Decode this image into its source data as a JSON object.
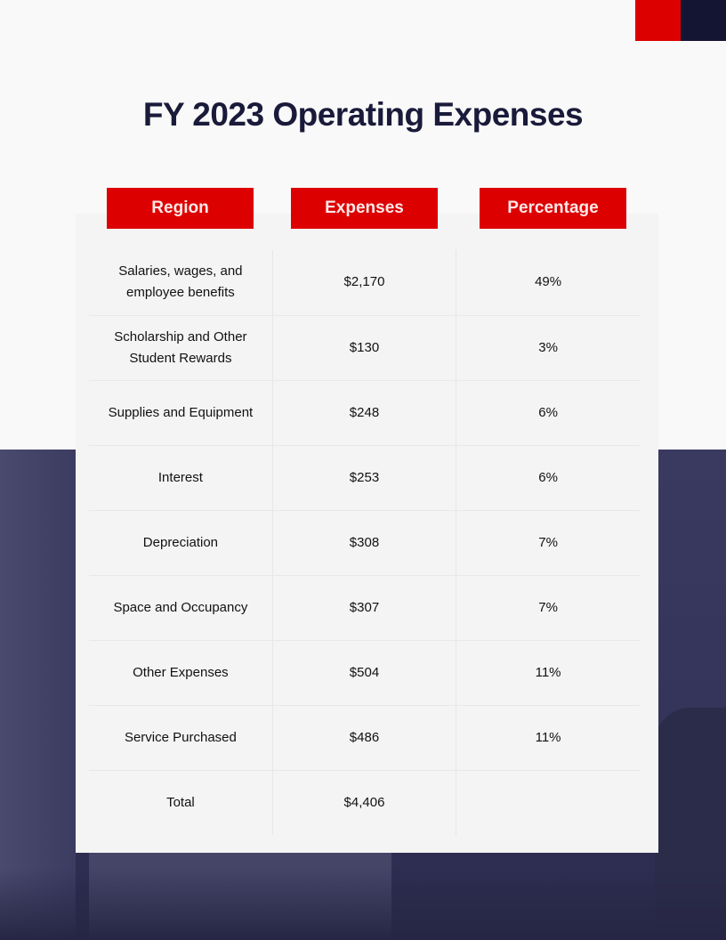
{
  "title": "FY 2023 Operating Expenses",
  "headers": [
    "Region",
    "Expenses",
    "Percentage"
  ],
  "rows": [
    {
      "region": "Salaries, wages, and employee benefits",
      "expenses": "$2,170",
      "percentage": "49%"
    },
    {
      "region": "Scholarship and Other Student Rewards",
      "expenses": "$130",
      "percentage": "3%"
    },
    {
      "region": "Supplies and Equipment",
      "expenses": "$248",
      "percentage": "6%"
    },
    {
      "region": "Interest",
      "expenses": "$253",
      "percentage": "6%"
    },
    {
      "region": "Depreciation",
      "expenses": "$308",
      "percentage": "7%"
    },
    {
      "region": "Space and Occupancy",
      "expenses": "$307",
      "percentage": "7%"
    },
    {
      "region": "Other Expenses",
      "expenses": "$504",
      "percentage": "11%"
    },
    {
      "region": "Service Purchased",
      "expenses": "$486",
      "percentage": "11%"
    },
    {
      "region": "Total",
      "expenses": "$4,406",
      "percentage": ""
    }
  ],
  "colors": {
    "accent": "#dd0000",
    "navy": "#141433"
  }
}
